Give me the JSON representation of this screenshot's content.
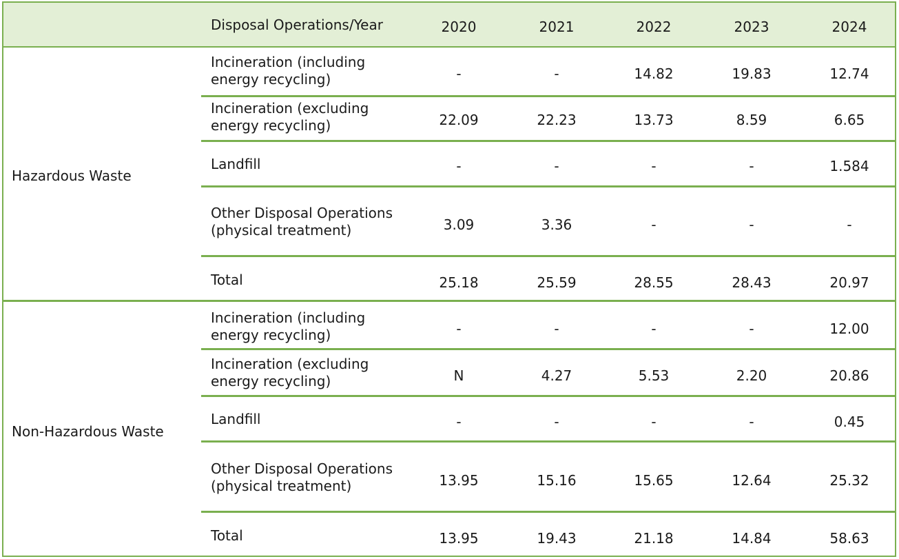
{
  "header": {
    "label": "Disposal Operations/Year",
    "years": [
      "2020",
      "2021",
      "2022",
      "2023",
      "2024"
    ]
  },
  "groups": [
    {
      "name": "Hazardous Waste",
      "rows": [
        {
          "op1": "Incineration (including",
          "op2": "energy recycling)",
          "values": [
            "-",
            "-",
            "14.82",
            "19.83",
            "12.74"
          ]
        },
        {
          "op1": "Incineration (excluding",
          "op2": "energy recycling)",
          "values": [
            "22.09",
            "22.23",
            "13.73",
            "8.59",
            "6.65"
          ]
        },
        {
          "op1": "Landfill",
          "op2": "",
          "values": [
            "-",
            "-",
            "-",
            "-",
            "1.584"
          ]
        },
        {
          "op1": "Other Disposal Operations",
          "op2": "(physical treatment)",
          "values": [
            "3.09",
            "3.36",
            "-",
            "-",
            "-"
          ]
        },
        {
          "op1": "Total",
          "op2": "",
          "values": [
            "25.18",
            "25.59",
            "28.55",
            "28.43",
            "20.97"
          ]
        }
      ]
    },
    {
      "name": "Non-Hazardous Waste",
      "rows": [
        {
          "op1": "Incineration (including",
          "op2": "energy recycling)",
          "values": [
            "-",
            "-",
            "-",
            "-",
            "12.00"
          ]
        },
        {
          "op1": "Incineration (excluding",
          "op2": "energy recycling)",
          "values": [
            "N",
            "4.27",
            "5.53",
            "2.20",
            "20.86"
          ]
        },
        {
          "op1": "Landfill",
          "op2": "",
          "values": [
            "-",
            "-",
            "-",
            "-",
            "0.45"
          ]
        },
        {
          "op1": "Other Disposal Operations",
          "op2": "(physical treatment)",
          "values": [
            "13.95",
            "15.16",
            "15.65",
            "12.64",
            "25.32"
          ]
        },
        {
          "op1": "Total",
          "op2": "",
          "values": [
            "13.95",
            "19.43",
            "21.18",
            "14.84",
            "58.63"
          ]
        }
      ]
    }
  ],
  "colors": {
    "border": "#7aaf4f",
    "header_bg": "#e3efd6"
  }
}
